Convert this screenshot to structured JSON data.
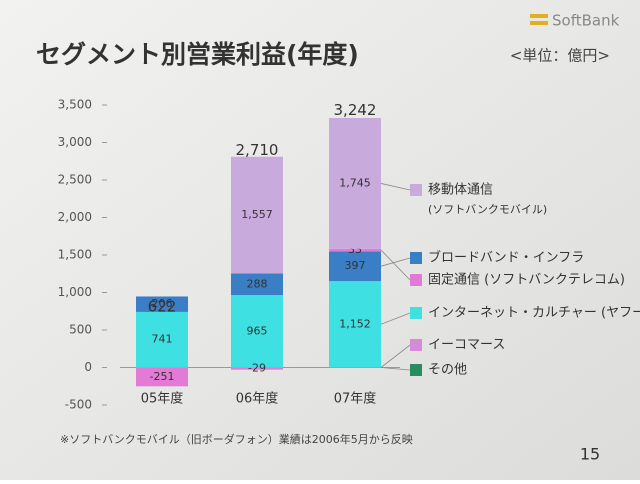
{
  "chart_data": {
    "type": "stacked-bar",
    "title": "セグメント別営業利益(年度)",
    "unit": "<単位：億円>",
    "logo": "SoftBank",
    "footnote": "※ソフトバンクモバイル（旧ボーダフォン）業績は2006年5月から反映",
    "page_number": "15",
    "categories": [
      "05年度",
      "06年度",
      "07年度"
    ],
    "totals": [
      622,
      2710,
      3242
    ],
    "total_labels": [
      "622",
      "2,710",
      "3,242"
    ],
    "ylim": [
      -500,
      3500
    ],
    "yticks": [
      -500,
      0,
      500,
      {
        "value": 1000,
        "label": "1,000"
      },
      {
        "value": 1500,
        "label": "1,500"
      },
      {
        "value": 2000,
        "label": "2,000"
      },
      {
        "value": 2500,
        "label": "2,500"
      },
      {
        "value": 3000,
        "label": "3,000"
      },
      {
        "value": 3500,
        "label": "3,500"
      }
    ],
    "series": [
      {
        "name": "インターネット・カルチャー (ヤフー)",
        "color": "#3fe0e2",
        "values": [
          741,
          965,
          1152
        ],
        "value_labels": [
          "741",
          "965",
          "1,152"
        ]
      },
      {
        "name": "ブロードバンド・インフラ",
        "color": "#3a7ec6",
        "values": [
          206,
          288,
          397
        ],
        "value_labels": [
          "206",
          "288",
          "397"
        ]
      },
      {
        "name": "固定通信 (ソフトバンクテレコム)",
        "color": "#e27ad6",
        "values": [
          -251,
          -29,
          33
        ],
        "value_labels": [
          "-251",
          "-29",
          "33"
        ]
      },
      {
        "name": "移動体通信",
        "note": "(ソフトバンクモバイル)",
        "color": "#c9aadc",
        "values": [
          null,
          1557,
          1745
        ],
        "value_labels": [
          null,
          "1,557",
          "1,745"
        ]
      },
      {
        "name": "イーコマース",
        "color": "#d68ad8",
        "values": [
          null,
          null,
          null
        ]
      },
      {
        "name": "その他",
        "color": "#2a8a62",
        "values": [
          null,
          null,
          null
        ]
      }
    ]
  }
}
